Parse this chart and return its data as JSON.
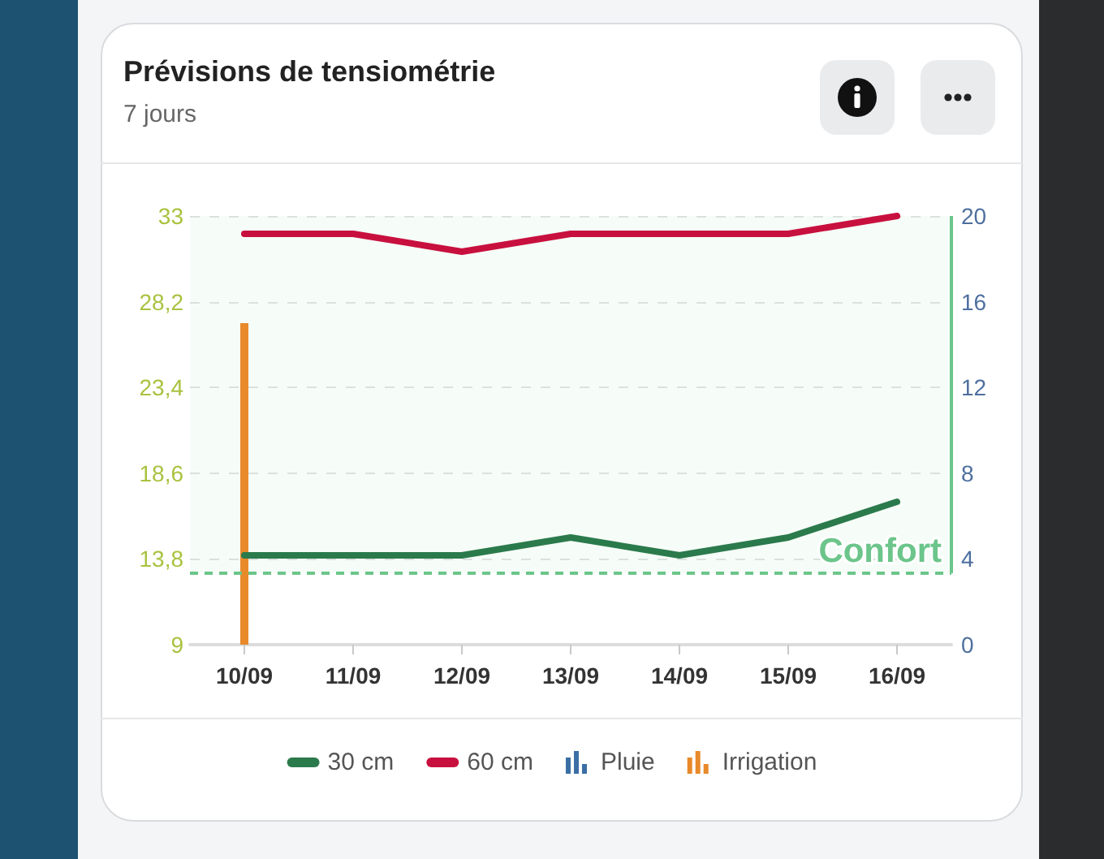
{
  "chart_data": {
    "type": "line",
    "title": "Prévisions de tensiométrie",
    "subtitle": "7 jours",
    "categories": [
      "10/09",
      "11/09",
      "12/09",
      "13/09",
      "14/09",
      "15/09",
      "16/09"
    ],
    "series": [
      {
        "name": "30 cm",
        "color": "#2b7a4b",
        "values": [
          14,
          14,
          14,
          15,
          14,
          15,
          17
        ]
      },
      {
        "name": "60 cm",
        "color": "#c8103e",
        "values": [
          32,
          32,
          31,
          32,
          32,
          32,
          33
        ]
      },
      {
        "name": "Pluie",
        "type": "bar",
        "axis": "y2",
        "color": "#3b6ea5",
        "values": [
          0,
          0,
          0,
          0,
          0,
          0,
          0
        ]
      },
      {
        "name": "Irrigation",
        "type": "bar",
        "axis": "y2",
        "color": "#e8892a",
        "values": [
          15,
          0,
          0,
          0,
          0,
          0,
          0
        ]
      }
    ],
    "ylim": [
      9,
      33
    ],
    "yticks": [
      9,
      {
        "value": 13.8,
        "label": "13,8"
      },
      {
        "value": 18.6,
        "label": "18,6"
      },
      {
        "value": 23.4,
        "label": "23,4"
      },
      {
        "value": 28.2,
        "label": "28,2"
      },
      33
    ],
    "y2lim": [
      0,
      20
    ],
    "y2ticks": [
      0,
      4,
      8,
      12,
      16,
      20
    ],
    "ref_lines": [
      {
        "axis": "y",
        "value": 13,
        "label": "Confort",
        "color": "#6cc58a",
        "line_style": "dashed"
      }
    ],
    "bands": [
      {
        "axis": "y",
        "from": 13,
        "to": 33,
        "color": "#6cc58a"
      }
    ],
    "grid": "y",
    "legend": "bottom",
    "marker": "none",
    "line_style": "solid"
  }
}
